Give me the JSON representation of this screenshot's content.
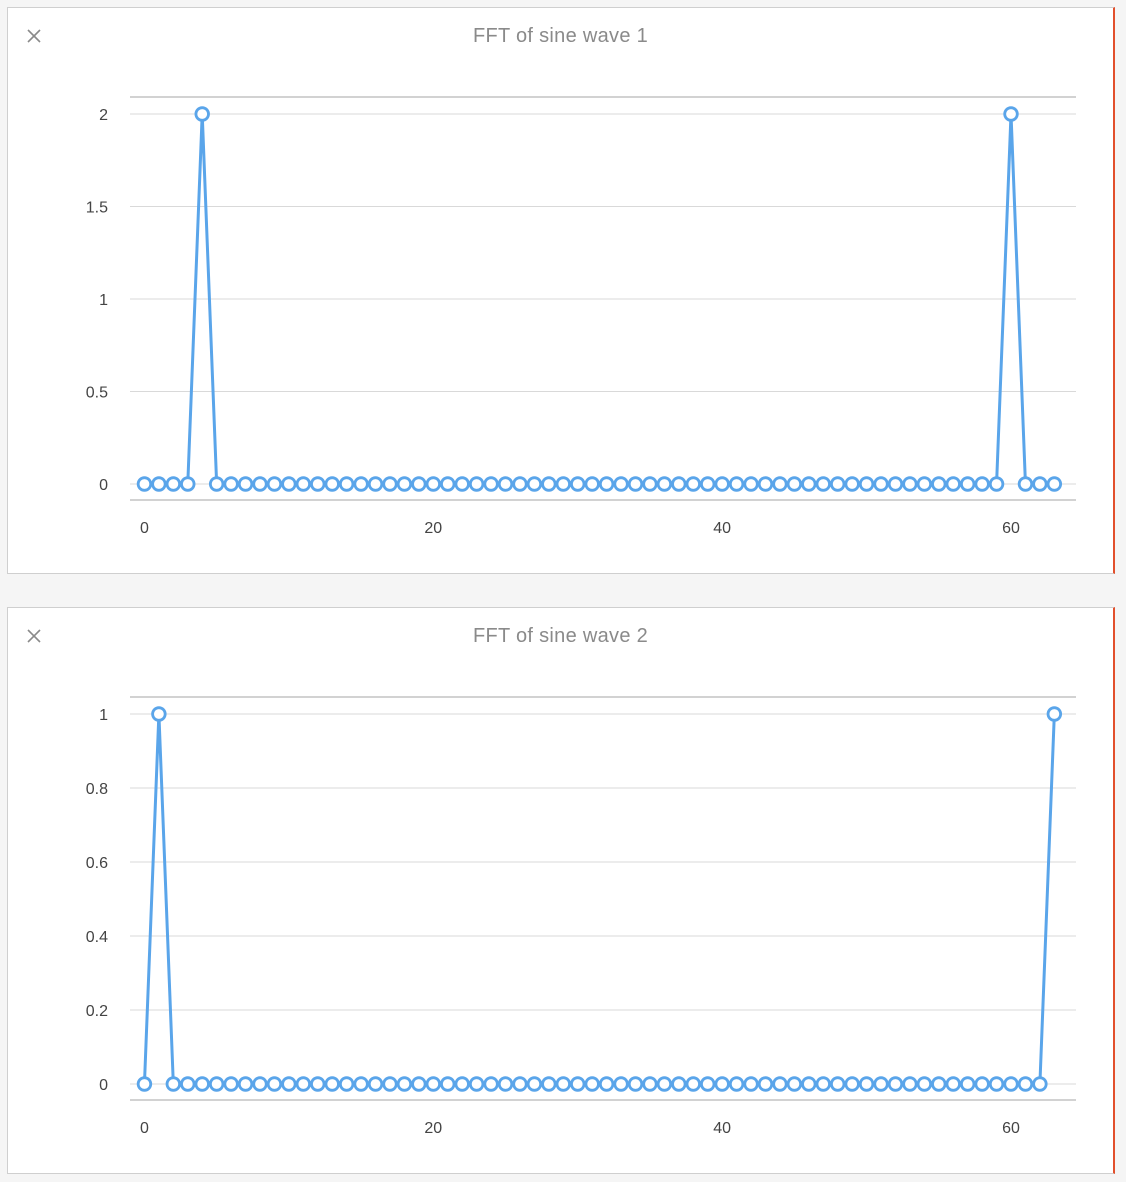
{
  "colors": {
    "series": "#5aa5ea",
    "grid": "#d9d9d9",
    "axis": "#b8b8b8",
    "panel_accent": "#e2502d",
    "title": "#8a8a8a"
  },
  "panels": [
    {
      "close_icon": "close-icon",
      "title": "FFT of sine wave 1"
    },
    {
      "close_icon": "close-icon",
      "title": "FFT of sine wave 2"
    }
  ],
  "chart_data": [
    {
      "type": "line",
      "title": "FFT of sine wave 1",
      "xlabel": "",
      "ylabel": "",
      "x": [
        0,
        1,
        2,
        3,
        4,
        5,
        6,
        7,
        8,
        9,
        10,
        11,
        12,
        13,
        14,
        15,
        16,
        17,
        18,
        19,
        20,
        21,
        22,
        23,
        24,
        25,
        26,
        27,
        28,
        29,
        30,
        31,
        32,
        33,
        34,
        35,
        36,
        37,
        38,
        39,
        40,
        41,
        42,
        43,
        44,
        45,
        46,
        47,
        48,
        49,
        50,
        51,
        52,
        53,
        54,
        55,
        56,
        57,
        58,
        59,
        60,
        61,
        62,
        63
      ],
      "series": [
        {
          "values": [
            0,
            0,
            0,
            0,
            2,
            0,
            0,
            0,
            0,
            0,
            0,
            0,
            0,
            0,
            0,
            0,
            0,
            0,
            0,
            0,
            0,
            0,
            0,
            0,
            0,
            0,
            0,
            0,
            0,
            0,
            0,
            0,
            0,
            0,
            0,
            0,
            0,
            0,
            0,
            0,
            0,
            0,
            0,
            0,
            0,
            0,
            0,
            0,
            0,
            0,
            0,
            0,
            0,
            0,
            0,
            0,
            0,
            0,
            0,
            0,
            2,
            0,
            0,
            0
          ]
        }
      ],
      "xticks": [
        0,
        20,
        40,
        60
      ],
      "yticks": [
        0,
        0.5,
        1,
        1.5,
        2
      ],
      "xtick_labels": [
        "0",
        "20",
        "40",
        "60"
      ],
      "ytick_labels": [
        "0",
        "0.5",
        "1",
        "1.5",
        "2"
      ],
      "xlim": [
        -1,
        64.5
      ],
      "ylim": [
        0,
        2
      ],
      "markers": "hollow-circle",
      "grid": true,
      "legend": "none"
    },
    {
      "type": "line",
      "title": "FFT of sine wave 2",
      "xlabel": "",
      "ylabel": "",
      "x": [
        0,
        1,
        2,
        3,
        4,
        5,
        6,
        7,
        8,
        9,
        10,
        11,
        12,
        13,
        14,
        15,
        16,
        17,
        18,
        19,
        20,
        21,
        22,
        23,
        24,
        25,
        26,
        27,
        28,
        29,
        30,
        31,
        32,
        33,
        34,
        35,
        36,
        37,
        38,
        39,
        40,
        41,
        42,
        43,
        44,
        45,
        46,
        47,
        48,
        49,
        50,
        51,
        52,
        53,
        54,
        55,
        56,
        57,
        58,
        59,
        60,
        61,
        62,
        63
      ],
      "series": [
        {
          "values": [
            0,
            1,
            0,
            0,
            0,
            0,
            0,
            0,
            0,
            0,
            0,
            0,
            0,
            0,
            0,
            0,
            0,
            0,
            0,
            0,
            0,
            0,
            0,
            0,
            0,
            0,
            0,
            0,
            0,
            0,
            0,
            0,
            0,
            0,
            0,
            0,
            0,
            0,
            0,
            0,
            0,
            0,
            0,
            0,
            0,
            0,
            0,
            0,
            0,
            0,
            0,
            0,
            0,
            0,
            0,
            0,
            0,
            0,
            0,
            0,
            0,
            0,
            0,
            1
          ]
        }
      ],
      "xticks": [
        0,
        20,
        40,
        60
      ],
      "yticks": [
        0,
        0.2,
        0.4,
        0.6,
        0.8,
        1
      ],
      "xtick_labels": [
        "0",
        "20",
        "40",
        "60"
      ],
      "ytick_labels": [
        "0",
        "0.2",
        "0.4",
        "0.6",
        "0.8",
        "1"
      ],
      "xlim": [
        -1,
        64.5
      ],
      "ylim": [
        0,
        1
      ],
      "markers": "hollow-circle",
      "grid": true,
      "legend": "none"
    }
  ]
}
